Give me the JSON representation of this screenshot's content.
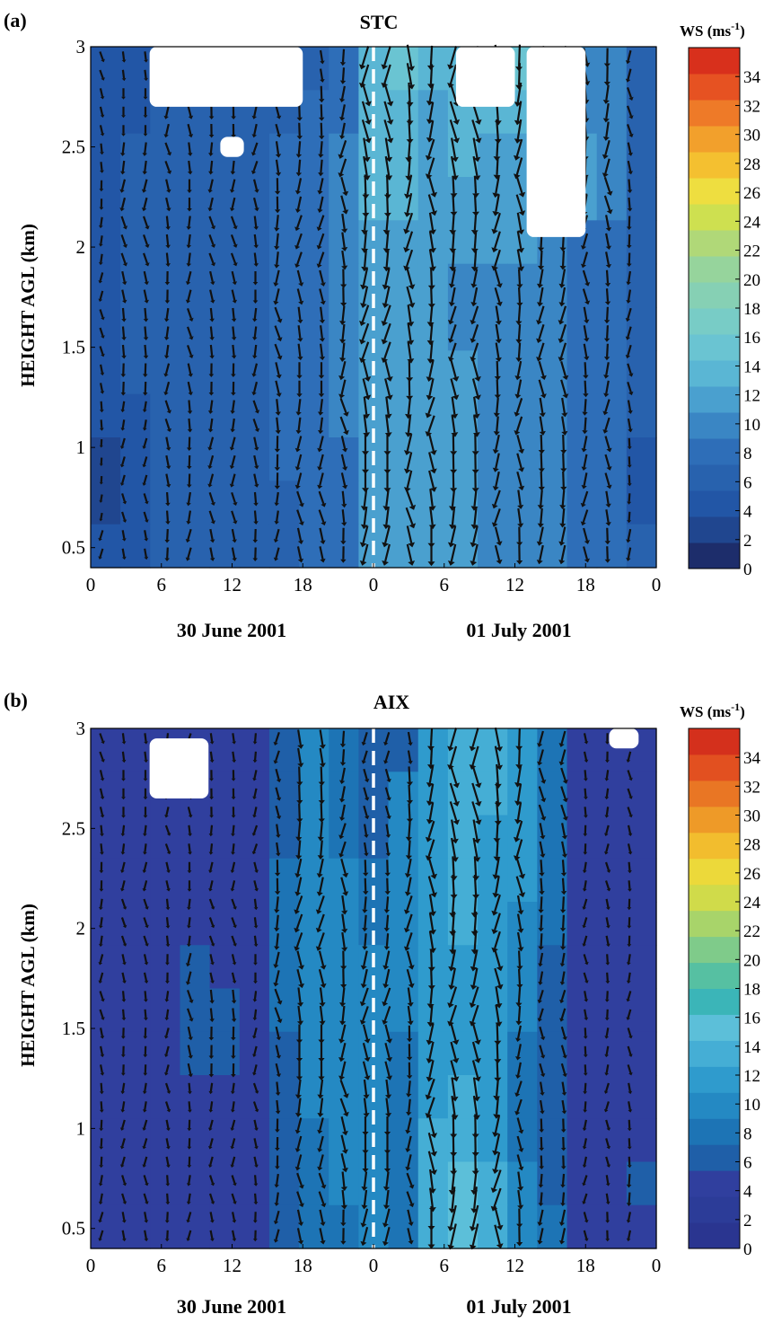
{
  "chart_data": [
    {
      "type": "heatmap",
      "panel": "(a)",
      "title": "STC",
      "ylabel": "HEIGHT AGL (km)",
      "xticks": [
        "0",
        "6",
        "12",
        "18",
        "0",
        "6",
        "12",
        "18",
        "0"
      ],
      "yticks": [
        "0.5",
        "1",
        "1.5",
        "2",
        "2.5",
        "3"
      ],
      "xlim": [
        0,
        48
      ],
      "ylim": [
        0.4,
        3.0
      ],
      "xlabels": [
        "30 June 2001",
        "01 July 2001"
      ],
      "divider_x": 24,
      "colorbar": {
        "title": "WS (ms",
        "title_sup": "-1",
        "title_close": ")",
        "ticks": [
          "0",
          "2",
          "4",
          "6",
          "8",
          "10",
          "12",
          "14",
          "16",
          "18",
          "20",
          "22",
          "24",
          "26",
          "28",
          "30",
          "32",
          "34"
        ],
        "range": [
          0,
          36
        ]
      },
      "colors": [
        "#1d2d6b",
        "#20468f",
        "#2256a6",
        "#2862ae",
        "#2e6eb8",
        "#3a86c4",
        "#4aa0cf",
        "#5ab6d4",
        "#6ac4d2",
        "#78ccc6",
        "#86d0b4",
        "#96d49c",
        "#b0d878",
        "#cee050",
        "#eede40",
        "#f4c030",
        "#f2a02c",
        "#ee7a28",
        "#e65222",
        "#d8301c"
      ],
      "wind_speed_ms": [
        [
          4,
          4,
          6,
          6,
          6,
          6,
          6,
          6,
          8,
          14,
          16,
          14,
          14,
          16,
          16,
          14,
          10,
          10,
          6
        ],
        [
          4,
          4,
          6,
          6,
          6,
          6,
          6,
          8,
          8,
          14,
          14,
          12,
          14,
          14,
          14,
          12,
          10,
          10,
          6
        ],
        [
          4,
          6,
          6,
          6,
          6,
          6,
          8,
          8,
          10,
          14,
          14,
          12,
          14,
          12,
          12,
          12,
          12,
          10,
          6
        ],
        [
          4,
          6,
          6,
          6,
          6,
          6,
          8,
          8,
          10,
          14,
          14,
          12,
          12,
          12,
          12,
          12,
          12,
          10,
          6
        ],
        [
          4,
          6,
          6,
          6,
          6,
          6,
          8,
          8,
          10,
          12,
          12,
          12,
          12,
          12,
          12,
          10,
          8,
          8,
          6
        ],
        [
          4,
          6,
          6,
          6,
          6,
          6,
          8,
          8,
          10,
          12,
          12,
          12,
          10,
          10,
          10,
          10,
          8,
          8,
          6
        ],
        [
          4,
          6,
          6,
          6,
          6,
          6,
          8,
          8,
          10,
          12,
          12,
          12,
          10,
          10,
          10,
          10,
          8,
          8,
          6
        ],
        [
          4,
          6,
          6,
          6,
          6,
          6,
          8,
          8,
          10,
          12,
          12,
          12,
          12,
          10,
          10,
          10,
          8,
          8,
          6
        ],
        [
          4,
          4,
          6,
          6,
          6,
          6,
          8,
          8,
          10,
          12,
          12,
          12,
          12,
          10,
          10,
          10,
          8,
          8,
          6
        ],
        [
          2,
          4,
          6,
          6,
          6,
          6,
          8,
          8,
          8,
          12,
          12,
          12,
          12,
          10,
          10,
          10,
          8,
          8,
          4
        ],
        [
          2,
          4,
          6,
          6,
          6,
          6,
          6,
          8,
          8,
          12,
          12,
          12,
          12,
          10,
          10,
          10,
          8,
          8,
          4
        ],
        [
          4,
          4,
          6,
          6,
          6,
          6,
          6,
          8,
          8,
          12,
          12,
          12,
          12,
          10,
          10,
          10,
          8,
          8,
          6
        ]
      ],
      "missing": [
        {
          "x": [
            5,
            18
          ],
          "y": [
            2.7,
            3.0
          ]
        },
        {
          "x": [
            11,
            13
          ],
          "y": [
            2.45,
            2.55
          ]
        },
        {
          "x": [
            31,
            36
          ],
          "y": [
            2.7,
            3.0
          ]
        },
        {
          "x": [
            37,
            42
          ],
          "y": [
            2.05,
            3.0
          ]
        }
      ]
    },
    {
      "type": "heatmap",
      "panel": "(b)",
      "title": "AIX",
      "ylabel": "HEIGHT AGL (km)",
      "xticks": [
        "0",
        "6",
        "12",
        "18",
        "0",
        "6",
        "12",
        "18",
        "0"
      ],
      "yticks": [
        "0.5",
        "1",
        "1.5",
        "2",
        "2.5",
        "3"
      ],
      "xlim": [
        0,
        48
      ],
      "ylim": [
        0.4,
        3.0
      ],
      "xlabels": [
        "30 June 2001",
        "01 July 2001"
      ],
      "divider_x": 24,
      "colorbar": {
        "title": "WS (ms",
        "title_sup": "-1",
        "title_close": ")",
        "ticks": [
          "0",
          "2",
          "4",
          "6",
          "8",
          "10",
          "12",
          "14",
          "16",
          "18",
          "20",
          "22",
          "24",
          "26",
          "28",
          "30",
          "32",
          "34"
        ],
        "range": [
          0,
          36
        ]
      },
      "colors": [
        "#2a3590",
        "#2c3c98",
        "#303f9e",
        "#1f5fa8",
        "#1d74b5",
        "#2489c3",
        "#2f9bcd",
        "#45aed5",
        "#5cbfd9",
        "#3bb5b8",
        "#56c0a2",
        "#7fcb8a",
        "#a8d46a",
        "#d0db4a",
        "#ecd93a",
        "#f2bd2e",
        "#ee9a28",
        "#e97624",
        "#e25020",
        "#d4301c"
      ],
      "wind_speed_ms": [
        [
          4,
          4,
          4,
          4,
          4,
          4,
          6,
          10,
          8,
          6,
          6,
          12,
          14,
          14,
          12,
          8,
          4,
          4,
          4
        ],
        [
          4,
          4,
          4,
          4,
          4,
          4,
          6,
          10,
          8,
          6,
          10,
          12,
          14,
          14,
          12,
          8,
          4,
          4,
          4
        ],
        [
          4,
          4,
          4,
          4,
          4,
          4,
          6,
          10,
          8,
          6,
          10,
          12,
          14,
          12,
          12,
          8,
          4,
          4,
          4
        ],
        [
          4,
          4,
          4,
          4,
          4,
          4,
          8,
          10,
          10,
          8,
          10,
          12,
          14,
          12,
          12,
          8,
          4,
          4,
          4
        ],
        [
          4,
          4,
          4,
          4,
          4,
          4,
          8,
          10,
          10,
          8,
          10,
          12,
          14,
          12,
          10,
          8,
          4,
          4,
          4
        ],
        [
          4,
          4,
          4,
          6,
          4,
          4,
          8,
          10,
          10,
          10,
          10,
          12,
          12,
          12,
          10,
          6,
          4,
          4,
          4
        ],
        [
          4,
          4,
          4,
          6,
          6,
          4,
          8,
          10,
          10,
          10,
          10,
          12,
          12,
          12,
          10,
          6,
          4,
          4,
          4
        ],
        [
          4,
          4,
          4,
          6,
          6,
          4,
          6,
          10,
          10,
          10,
          8,
          12,
          12,
          12,
          8,
          6,
          4,
          4,
          4
        ],
        [
          4,
          4,
          4,
          4,
          4,
          4,
          6,
          10,
          10,
          10,
          8,
          12,
          14,
          12,
          8,
          6,
          4,
          4,
          4
        ],
        [
          4,
          4,
          4,
          4,
          4,
          4,
          6,
          8,
          10,
          10,
          8,
          14,
          14,
          12,
          8,
          6,
          4,
          4,
          4
        ],
        [
          4,
          4,
          4,
          4,
          4,
          4,
          6,
          8,
          10,
          10,
          8,
          14,
          16,
          14,
          10,
          6,
          4,
          4,
          6
        ],
        [
          4,
          4,
          4,
          4,
          4,
          4,
          6,
          8,
          8,
          10,
          8,
          14,
          16,
          14,
          10,
          8,
          4,
          4,
          4
        ]
      ],
      "missing": [
        {
          "x": [
            5,
            10
          ],
          "y": [
            2.65,
            2.95
          ]
        },
        {
          "x": [
            44,
            46.5
          ],
          "y": [
            2.9,
            3.0
          ]
        }
      ]
    }
  ]
}
